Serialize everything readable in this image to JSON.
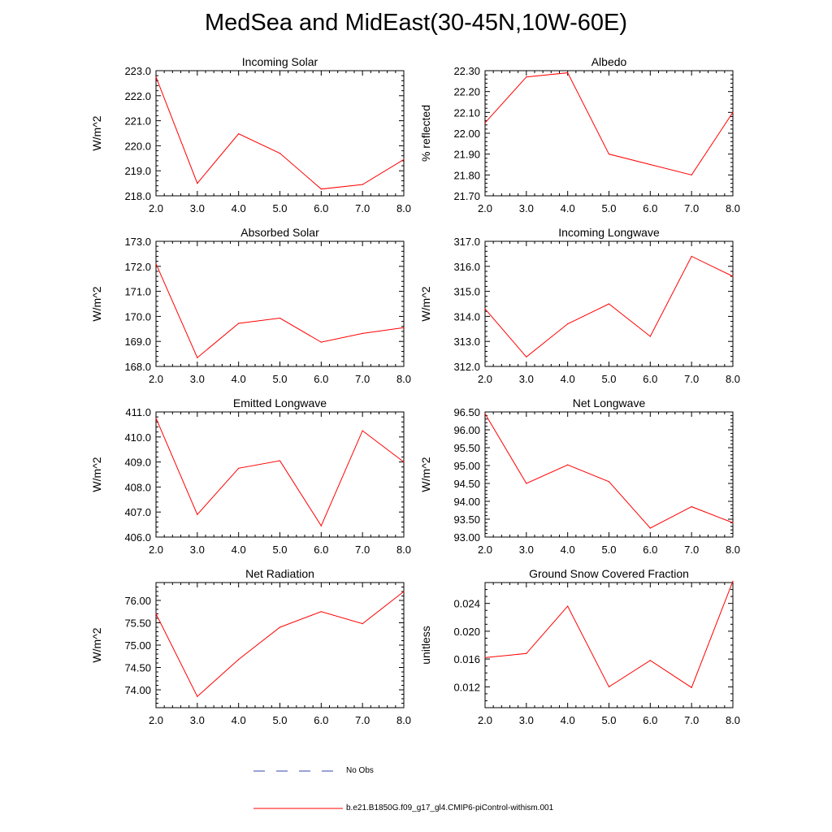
{
  "title": "MedSea and MidEast(30-45N,10W-60E)",
  "colors": {
    "model_line": "#ff0000",
    "obs_line": "#3344aa",
    "axis": "#000000"
  },
  "legend": [
    {
      "label": "No Obs",
      "style": "dashed",
      "color": "#3344aa"
    },
    {
      "label": "b.e21.B1850G.f09_g17_gl4.CMIP6-piControl-withism.001",
      "style": "solid",
      "color": "#ff0000"
    }
  ],
  "chart_data": [
    {
      "type": "line",
      "title": "Incoming Solar",
      "ylabel": "W/m^2",
      "x": [
        2,
        3,
        4,
        5,
        6,
        7,
        8
      ],
      "values": [
        222.75,
        218.5,
        220.48,
        219.7,
        218.27,
        218.45,
        219.45
      ],
      "xlim": [
        2,
        8
      ],
      "ylim": [
        218,
        223
      ],
      "yticks": [
        218,
        219,
        220,
        221,
        222,
        223
      ],
      "ydecimals": 1,
      "yminor": 5
    },
    {
      "type": "line",
      "title": "Albedo",
      "ylabel": "% reflected",
      "x": [
        2,
        3,
        4,
        5,
        6,
        7,
        8
      ],
      "values": [
        22.05,
        22.27,
        22.29,
        21.9,
        21.85,
        21.8,
        22.1
      ],
      "xlim": [
        2,
        8
      ],
      "ylim": [
        21.7,
        22.3
      ],
      "yticks": [
        21.7,
        21.8,
        21.9,
        22.0,
        22.1,
        22.2,
        22.3
      ],
      "ydecimals": 2,
      "yminor": 5
    },
    {
      "type": "line",
      "title": "Absorbed Solar",
      "ylabel": "W/m^2",
      "x": [
        2,
        3,
        4,
        5,
        6,
        7,
        8
      ],
      "values": [
        172.1,
        168.35,
        169.72,
        169.93,
        168.97,
        169.32,
        169.55
      ],
      "xlim": [
        2,
        8
      ],
      "ylim": [
        168,
        173
      ],
      "yticks": [
        168,
        169,
        170,
        171,
        172,
        173
      ],
      "ydecimals": 1,
      "yminor": 5
    },
    {
      "type": "line",
      "title": "Incoming Longwave",
      "ylabel": "W/m^2",
      "x": [
        2,
        3,
        4,
        5,
        6,
        7,
        8
      ],
      "values": [
        314.3,
        312.38,
        313.7,
        314.5,
        313.2,
        316.4,
        315.6
      ],
      "xlim": [
        2,
        8
      ],
      "ylim": [
        312,
        317
      ],
      "yticks": [
        312,
        313,
        314,
        315,
        316,
        317
      ],
      "ydecimals": 1,
      "yminor": 5
    },
    {
      "type": "line",
      "title": "Emitted Longwave",
      "ylabel": "W/m^2",
      "x": [
        2,
        3,
        4,
        5,
        6,
        7,
        8
      ],
      "values": [
        410.75,
        406.9,
        408.75,
        409.05,
        406.45,
        410.25,
        409.0
      ],
      "xlim": [
        2,
        8
      ],
      "ylim": [
        406,
        411
      ],
      "yticks": [
        406,
        407,
        408,
        409,
        410,
        411
      ],
      "ydecimals": 1,
      "yminor": 5
    },
    {
      "type": "line",
      "title": "Net Longwave",
      "ylabel": "W/m^2",
      "x": [
        2,
        3,
        4,
        5,
        6,
        7,
        8
      ],
      "values": [
        96.45,
        94.5,
        95.02,
        94.55,
        93.25,
        93.85,
        93.4
      ],
      "xlim": [
        2,
        8
      ],
      "ylim": [
        93,
        96.5
      ],
      "yticks": [
        93.0,
        93.5,
        94.0,
        94.5,
        95.0,
        95.5,
        96.0,
        96.5
      ],
      "ydecimals": 2,
      "yminor": 5
    },
    {
      "type": "line",
      "title": "Net Radiation",
      "ylabel": "W/m^2",
      "x": [
        2,
        3,
        4,
        5,
        6,
        7,
        8
      ],
      "values": [
        75.7,
        73.85,
        74.68,
        75.4,
        75.75,
        75.48,
        76.2
      ],
      "xlim": [
        2,
        8
      ],
      "ylim": [
        73.6,
        76.4
      ],
      "yticks": [
        74.0,
        74.5,
        75.0,
        75.5,
        76.0
      ],
      "ydecimals": 2,
      "yminor": 5
    },
    {
      "type": "line",
      "title": "Ground Snow Covered Fraction",
      "ylabel": "unitless",
      "x": [
        2,
        3,
        4,
        5,
        6,
        7,
        8
      ],
      "values": [
        0.0162,
        0.0168,
        0.0236,
        0.012,
        0.0158,
        0.0119,
        0.0272
      ],
      "xlim": [
        2,
        8
      ],
      "ylim": [
        0.009,
        0.027
      ],
      "yticks": [
        0.012,
        0.016,
        0.02,
        0.024
      ],
      "ydecimals": 3,
      "yminor": 4
    }
  ]
}
